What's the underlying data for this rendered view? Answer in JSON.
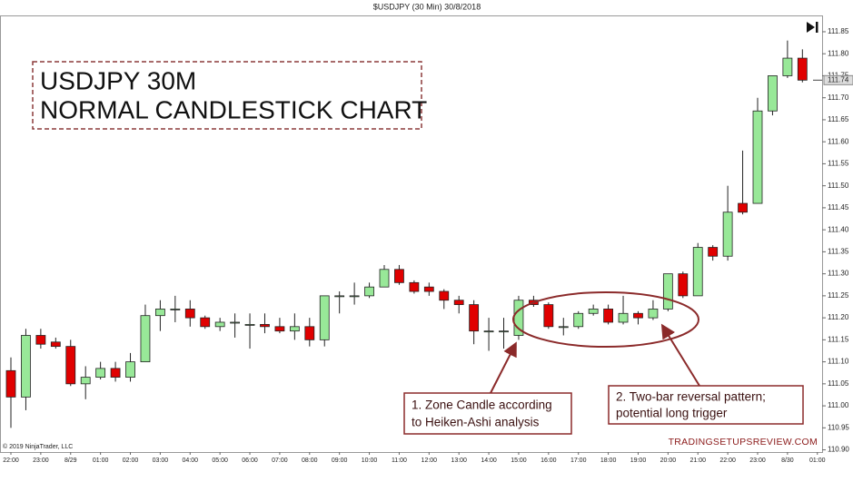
{
  "chart_data": {
    "type": "candlestick",
    "title": "$USDJPY (30 Min)  30/8/2018",
    "annotations": {
      "heading": [
        "USDJPY 30M",
        "NORMAL CANDLESTICK CHART"
      ],
      "callout_1": [
        "1. Zone Candle according",
        "to Heiken-Ashi analysis"
      ],
      "callout_2": [
        "2. Two-bar reversal pattern;",
        "potential long trigger"
      ],
      "watermark": "TRADINGSETUPSREVIEW.COM",
      "copyright": "© 2019 NinjaTrader, LLC"
    },
    "categories": [
      "22:00",
      null,
      "23:00",
      null,
      "8/29",
      null,
      "01:00",
      null,
      "02:00",
      null,
      "03:00",
      null,
      "04:00",
      null,
      "05:00",
      null,
      "06:00",
      null,
      "07:00",
      null,
      "08:00",
      null,
      "09:00",
      null,
      "10:00",
      null,
      "11:00",
      null,
      "12:00",
      null,
      "13:00",
      null,
      "14:00",
      null,
      "15:00",
      null,
      "16:00",
      null,
      "17:00",
      null,
      "18:00",
      null,
      "19:00",
      null,
      "20:00",
      null,
      "21:00",
      null,
      "22:00",
      null,
      "23:00",
      null,
      "8/30",
      null,
      "01:00"
    ],
    "open": [
      111.08,
      111.02,
      111.16,
      111.145,
      111.135,
      111.05,
      111.065,
      111.085,
      111.065,
      111.1,
      111.205,
      111.22,
      111.22,
      111.2,
      111.18,
      111.19,
      111.185,
      111.185,
      111.18,
      111.17,
      111.18,
      111.15,
      111.25,
      111.25,
      111.25,
      111.27,
      111.31,
      111.28,
      111.27,
      111.26,
      111.24,
      111.23,
      111.17,
      111.17,
      111.16,
      111.24,
      111.23,
      111.18,
      111.18,
      111.21,
      111.22,
      111.19,
      111.21,
      111.2,
      111.22,
      111.3,
      111.25,
      111.36,
      111.34,
      111.46,
      111.46,
      111.67,
      111.75,
      111.79,
      null
    ],
    "high": [
      111.11,
      111.175,
      111.175,
      111.155,
      111.15,
      111.09,
      111.1,
      111.1,
      111.12,
      111.23,
      111.24,
      111.25,
      111.24,
      111.205,
      111.2,
      111.21,
      111.21,
      111.21,
      111.2,
      111.21,
      111.2,
      111.25,
      111.26,
      111.28,
      111.28,
      111.32,
      111.32,
      111.285,
      111.28,
      111.265,
      111.25,
      111.24,
      111.2,
      111.2,
      111.25,
      111.25,
      111.235,
      111.2,
      111.215,
      111.23,
      111.23,
      111.25,
      111.215,
      111.24,
      111.3,
      111.305,
      111.37,
      111.365,
      111.5,
      111.58,
      111.7,
      111.75,
      111.83,
      111.81,
      null
    ],
    "low": [
      110.95,
      110.99,
      111.13,
      111.13,
      111.045,
      111.015,
      111.06,
      111.055,
      111.055,
      111.1,
      111.17,
      111.19,
      111.18,
      111.175,
      111.17,
      111.155,
      111.13,
      111.165,
      111.165,
      111.15,
      111.135,
      111.135,
      111.21,
      111.23,
      111.245,
      111.27,
      111.275,
      111.255,
      111.25,
      111.22,
      111.21,
      111.14,
      111.125,
      111.13,
      111.15,
      111.225,
      111.175,
      111.16,
      111.175,
      111.205,
      111.185,
      111.185,
      111.185,
      111.195,
      111.215,
      111.245,
      111.25,
      111.33,
      111.33,
      111.435,
      111.46,
      111.66,
      111.745,
      111.735,
      null
    ],
    "close": [
      111.02,
      111.16,
      111.14,
      111.135,
      111.05,
      111.065,
      111.085,
      111.065,
      111.1,
      111.205,
      111.22,
      111.22,
      111.2,
      111.18,
      111.19,
      111.19,
      111.185,
      111.18,
      111.17,
      111.18,
      111.15,
      111.25,
      111.25,
      111.25,
      111.27,
      111.31,
      111.28,
      111.26,
      111.26,
      111.24,
      111.23,
      111.17,
      111.17,
      111.17,
      111.24,
      111.23,
      111.18,
      111.18,
      111.21,
      111.22,
      111.19,
      111.21,
      111.2,
      111.22,
      111.3,
      111.25,
      111.36,
      111.34,
      111.44,
      111.44,
      111.67,
      111.75,
      111.79,
      111.74,
      null
    ],
    "up_color": "#98e898",
    "down_color": "#e00000",
    "current_price": 111.74,
    "ylim": [
      110.895,
      111.885
    ],
    "yticks": [
      111.85,
      {
        "value": 111.8,
        "label": "111.80"
      },
      111.75,
      {
        "value": 111.7,
        "label": "111.70"
      },
      111.65,
      {
        "value": 111.6,
        "label": "111.60"
      },
      111.55,
      {
        "value": 111.5,
        "label": "111.50"
      },
      111.45,
      {
        "value": 111.4,
        "label": "111.40"
      },
      111.35,
      {
        "value": 111.3,
        "label": "111.30"
      },
      111.25,
      {
        "value": 111.2,
        "label": "111.20"
      },
      111.15,
      {
        "value": 111.1,
        "label": "111.10"
      },
      111.05,
      {
        "value": 111.0,
        "label": "111.00"
      },
      110.95,
      {
        "value": 110.9,
        "label": "110.90"
      }
    ],
    "grid": false
  }
}
